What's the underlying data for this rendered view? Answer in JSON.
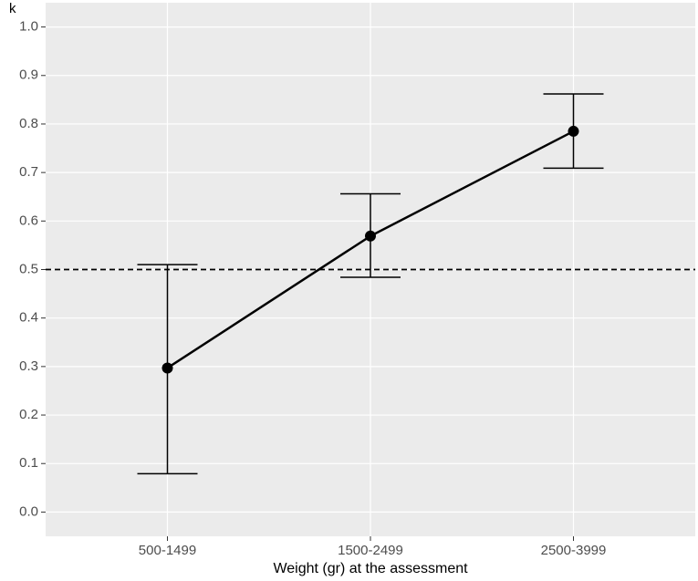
{
  "chart_data": {
    "type": "line",
    "x_label": "Weight (gr) at the assessment",
    "y_label": "k",
    "categories": [
      "500-1499",
      "1500-2499",
      "2500-3999"
    ],
    "series": [
      {
        "color": "#000000",
        "values": [
          0.297,
          0.569,
          0.785
        ],
        "lower": [
          0.079,
          0.484,
          0.709
        ],
        "upper": [
          0.51,
          0.656,
          0.862
        ]
      }
    ],
    "hline": 0.5,
    "ylim": [
      -0.05,
      1.05
    ],
    "yticks": [
      {
        "value": 0,
        "label": "0.0"
      },
      0.1,
      0.2,
      0.3,
      0.4,
      0.5,
      0.6,
      0.7,
      0.8,
      0.9,
      {
        "value": 1,
        "label": "1.0"
      }
    ],
    "grid": true
  }
}
